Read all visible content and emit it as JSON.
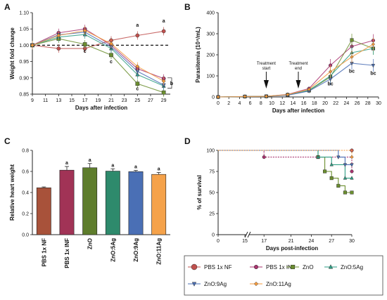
{
  "panels": {
    "A": "A",
    "B": "B",
    "C": "C",
    "D": "D"
  },
  "legend": [
    {
      "name": "PBS 1x NF",
      "color": "#c0504d",
      "marker": "circle"
    },
    {
      "name": "PBS 1x INF",
      "color": "#a8336e",
      "marker": "circle"
    },
    {
      "name": "ZnO",
      "color": "#6b8e2f",
      "marker": "square"
    },
    {
      "name": "ZnO:5Ag",
      "color": "#2e9e84",
      "marker": "triangle-up"
    },
    {
      "name": "ZnO:9Ag",
      "color": "#4a6fb5",
      "marker": "triangle-down"
    },
    {
      "name": "ZnO:11Ag",
      "color": "#f59a3c",
      "marker": "diamond"
    }
  ],
  "chart_data": [
    {
      "panel": "A",
      "type": "line",
      "xlabel": "Days after infection",
      "ylabel": "Weight fold change",
      "xlim": [
        9,
        30
      ],
      "ylim": [
        0.85,
        1.1
      ],
      "xticks": [
        9,
        11,
        13,
        15,
        17,
        19,
        21,
        23,
        25,
        27,
        29
      ],
      "yticks": [
        0.85,
        0.9,
        0.95,
        1.0,
        1.05,
        1.1
      ],
      "reference_line": 1.0,
      "x": [
        9,
        13,
        17,
        21,
        25,
        29
      ],
      "series": [
        {
          "name": "PBS 1x NF",
          "values": [
            1.0,
            0.99,
            0.99,
            1.015,
            1.03,
            1.043
          ]
        },
        {
          "name": "PBS 1x INF",
          "values": [
            1.0,
            1.038,
            1.05,
            1.0,
            0.928,
            0.898
          ]
        },
        {
          "name": "ZnO",
          "values": [
            1.0,
            1.02,
            1.003,
            0.97,
            0.882,
            0.855
          ]
        },
        {
          "name": "ZnO:5Ag",
          "values": [
            1.0,
            1.025,
            1.033,
            0.99,
            0.91,
            0.875
          ]
        },
        {
          "name": "ZnO:9Ag",
          "values": [
            1.0,
            1.032,
            1.04,
            0.995,
            0.92,
            0.878
          ]
        },
        {
          "name": "ZnO:11Ag",
          "values": [
            1.0,
            1.03,
            1.045,
            1.005,
            0.935,
            0.89
          ]
        }
      ],
      "annotations": [
        {
          "text": "a",
          "x": 25,
          "y": 1.057
        },
        {
          "text": "a",
          "x": 29,
          "y": 1.07
        },
        {
          "text": "c",
          "x": 17,
          "y": 0.977
        },
        {
          "text": "c",
          "x": 21,
          "y": 0.945
        },
        {
          "text": "c",
          "x": 25,
          "y": 0.862
        },
        {
          "text": "b",
          "x": 30.2,
          "y": 0.878
        }
      ]
    },
    {
      "panel": "B",
      "type": "line",
      "xlabel": "Days after infection",
      "ylabel": "Parasitemia (10⁴/mL)",
      "xlim": [
        0,
        30
      ],
      "ylim": [
        0,
        400
      ],
      "xticks": [
        0,
        2,
        4,
        6,
        8,
        10,
        12,
        14,
        16,
        18,
        20,
        22,
        24,
        26,
        28,
        30
      ],
      "yticks": [
        0,
        100,
        200,
        300,
        400
      ],
      "x": [
        0,
        5,
        9,
        13,
        17,
        21,
        25,
        29
      ],
      "series": [
        {
          "name": "PBS 1x INF",
          "values": [
            0,
            2,
            3,
            12,
            40,
            150,
            240,
            268
          ]
        },
        {
          "name": "ZnO",
          "values": [
            0,
            2,
            3,
            10,
            30,
            95,
            270,
            230
          ]
        },
        {
          "name": "ZnO:5Ag",
          "values": [
            0,
            2,
            3,
            10,
            32,
            100,
            210,
            230
          ]
        },
        {
          "name": "ZnO:9Ag",
          "values": [
            0,
            2,
            3,
            8,
            28,
            85,
            160,
            150
          ]
        },
        {
          "name": "ZnO:11Ag",
          "values": [
            0,
            2,
            3,
            11,
            36,
            120,
            190,
            250
          ]
        }
      ],
      "arrows": [
        {
          "label": [
            "Treatment",
            "start"
          ],
          "x": 9,
          "y": 0
        },
        {
          "label": [
            "Treatment",
            "end"
          ],
          "x": 15,
          "y": 0
        }
      ],
      "annotations": [
        {
          "text": "bc",
          "x": 21,
          "y": 55
        },
        {
          "text": "bc",
          "x": 25,
          "y": 115
        },
        {
          "text": "bc",
          "x": 29,
          "y": 105
        }
      ]
    },
    {
      "panel": "C",
      "type": "bar",
      "ylabel": "Relative heart weight",
      "ylim": [
        0,
        0.8
      ],
      "yticks": [
        0.0,
        0.2,
        0.4,
        0.6,
        0.8
      ],
      "categories": [
        "PBS 1x NF",
        "PBS 1x INF",
        "ZnO",
        "ZnO:5Ag",
        "ZnO:9Ag",
        "ZnO:11Ag"
      ],
      "values": [
        0.445,
        0.612,
        0.635,
        0.603,
        0.598,
        0.572
      ],
      "errors": [
        0.008,
        0.035,
        0.04,
        0.022,
        0.012,
        0.018
      ],
      "colors": [
        "#a8523a",
        "#a13356",
        "#5e7d2c",
        "#2e8a6c",
        "#4a6fb5",
        "#f5a24a"
      ],
      "letters": [
        "",
        "a",
        "a",
        "a",
        "a",
        "a"
      ]
    },
    {
      "panel": "D",
      "type": "line",
      "xlabel": "Days post-infection",
      "ylabel": "% of survival",
      "xlim": [
        0,
        30
      ],
      "ylim": [
        0,
        100
      ],
      "xticks": [
        0,
        15,
        17,
        21,
        24,
        27,
        30
      ],
      "yticks": [
        0,
        25,
        50,
        75,
        100
      ],
      "series": [
        {
          "name": "PBS 1x NF",
          "x": [
            0,
            30
          ],
          "values": [
            100,
            100
          ]
        },
        {
          "name": "PBS 1x INF",
          "x": [
            0,
            17,
            30,
            30
          ],
          "values": [
            100,
            92,
            92,
            75
          ]
        },
        {
          "name": "ZnO",
          "x": [
            0,
            25,
            26,
            27,
            28,
            29,
            30
          ],
          "values": [
            100,
            92,
            75,
            67,
            58,
            50,
            50
          ]
        },
        {
          "name": "ZnO:5Ag",
          "x": [
            0,
            25,
            27,
            29,
            30
          ],
          "values": [
            100,
            92,
            83,
            67,
            67
          ]
        },
        {
          "name": "ZnO:9Ag",
          "x": [
            0,
            28,
            29,
            30
          ],
          "values": [
            100,
            92,
            83,
            83
          ]
        },
        {
          "name": "ZnO:11Ag",
          "x": [
            0,
            30
          ],
          "values": [
            100,
            92
          ]
        }
      ]
    }
  ]
}
